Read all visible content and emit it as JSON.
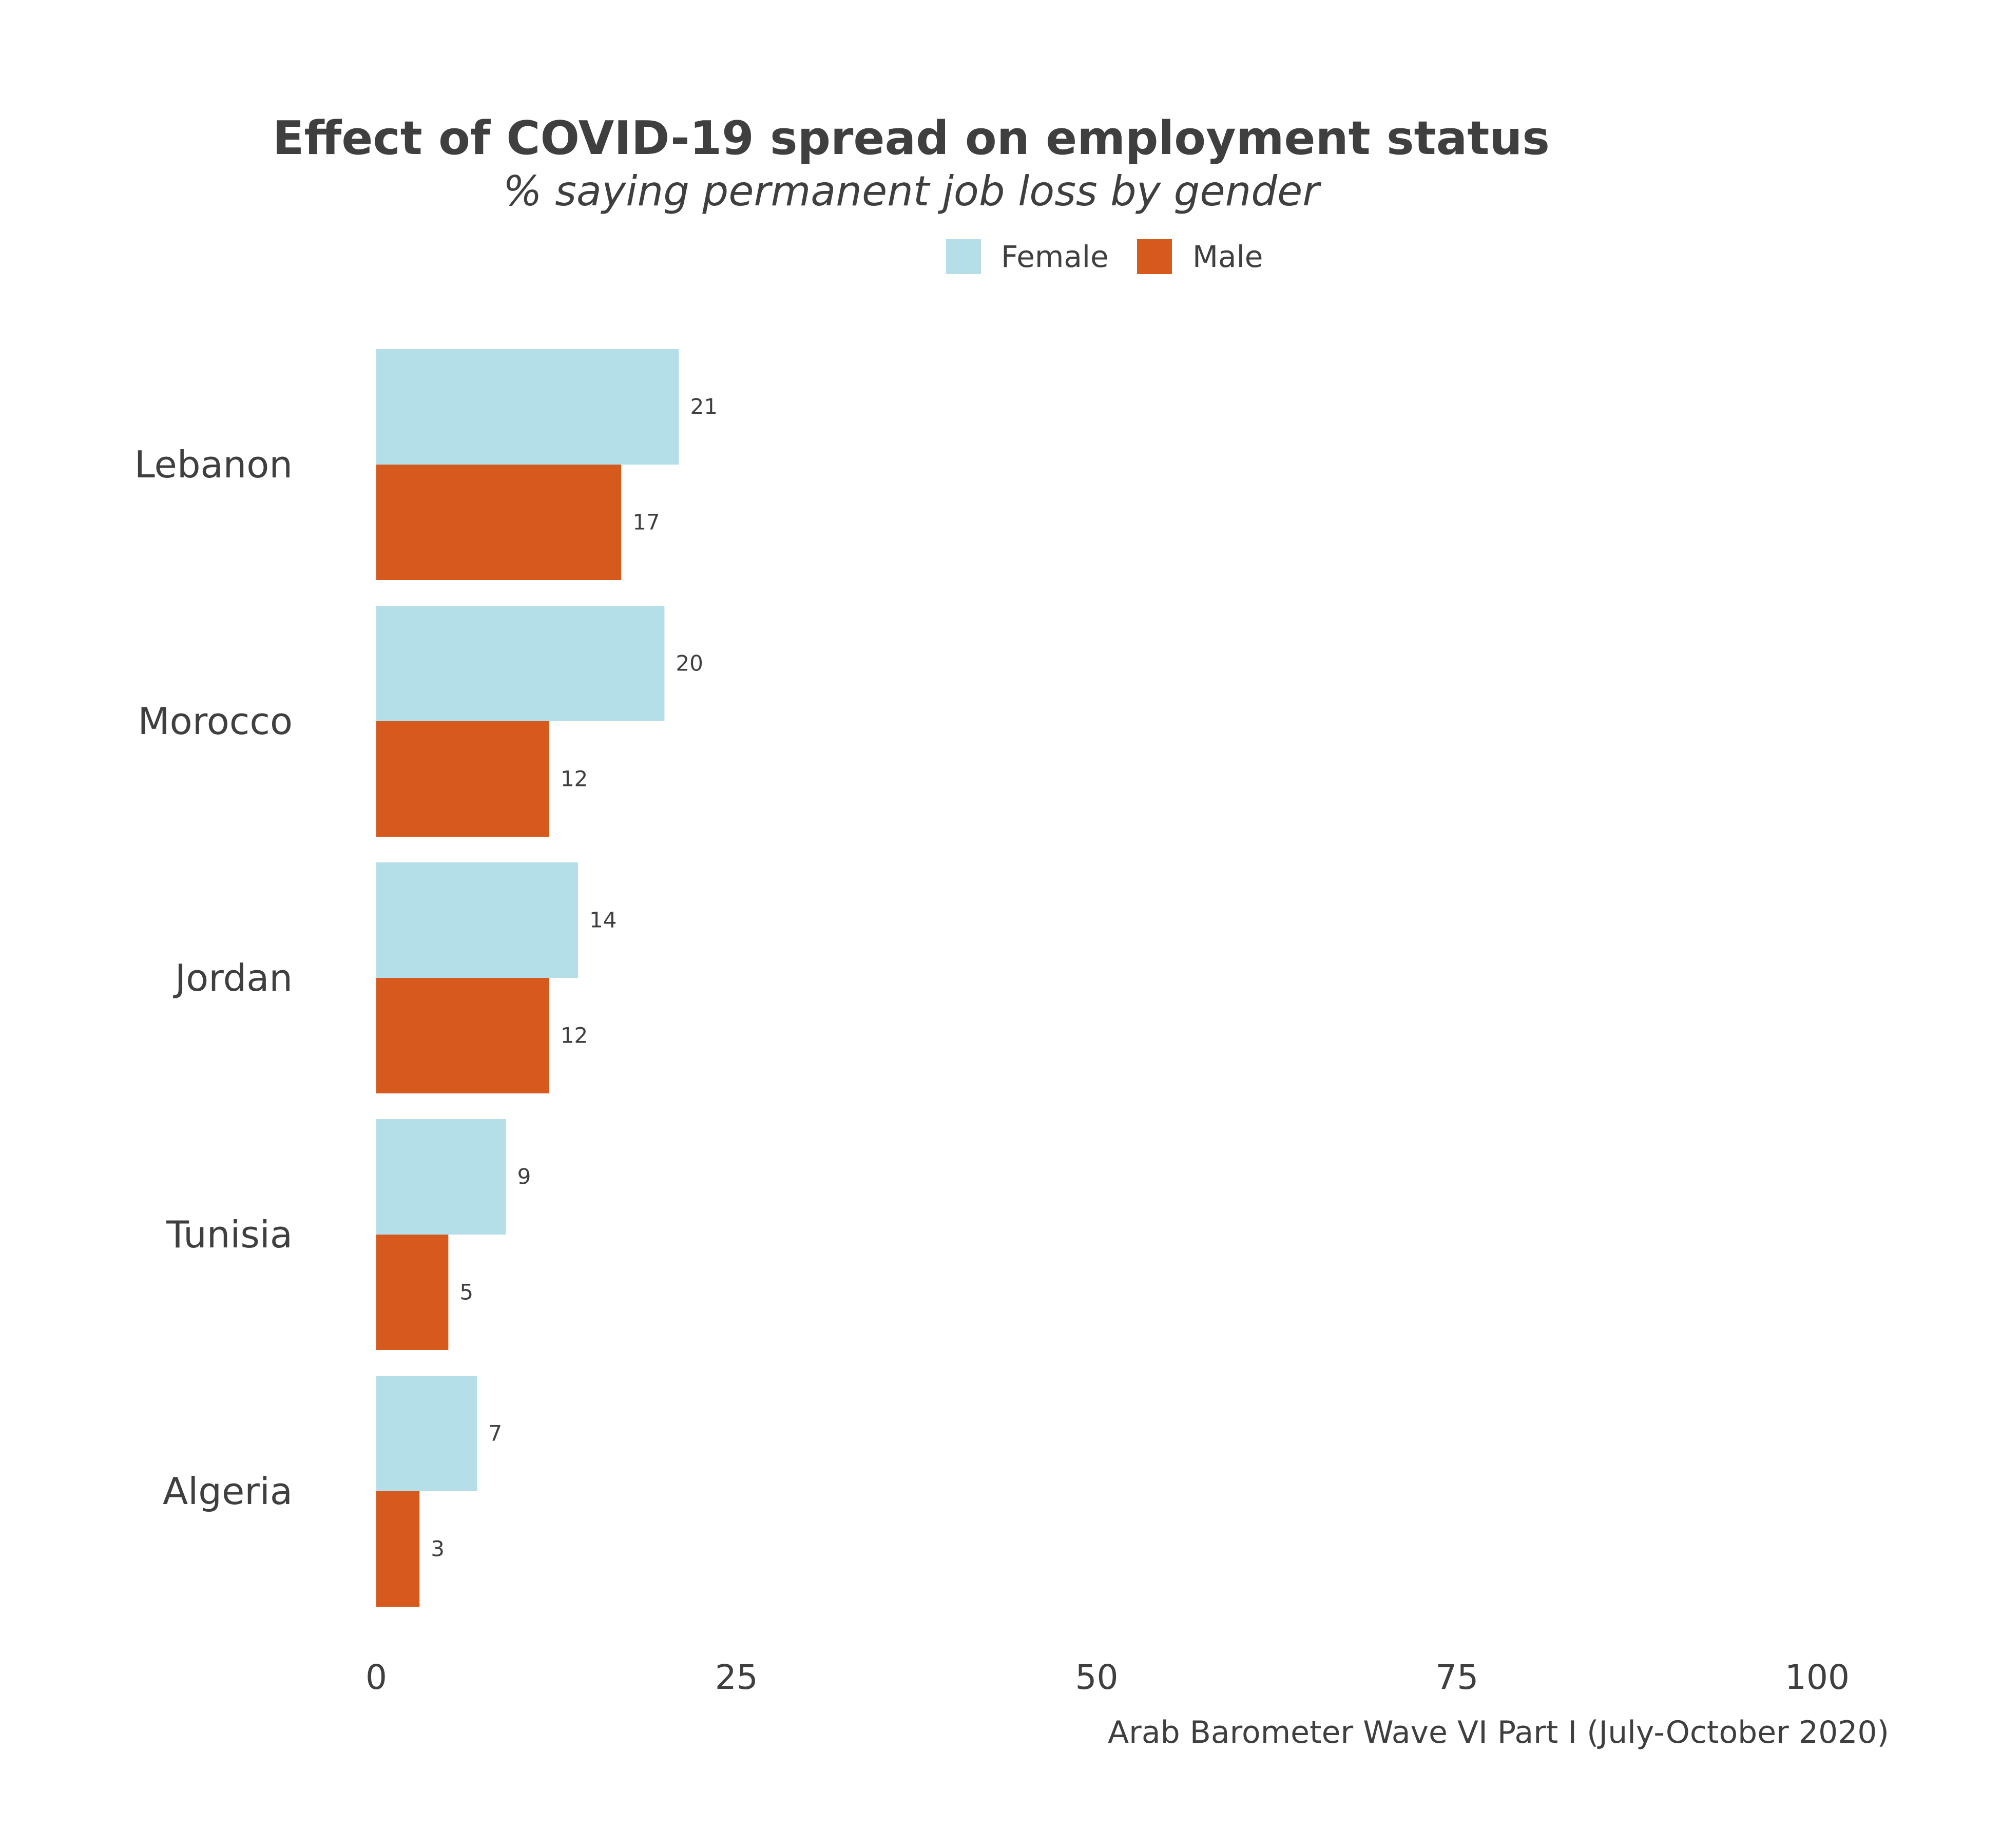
{
  "chart_data": {
    "type": "bar",
    "orientation": "horizontal",
    "title": "Effect of COVID-19 spread on employment status",
    "subtitle": "% saying permanent job loss by gender",
    "caption": "Arab Barometer Wave VI Part I (July-October 2020)",
    "categories": [
      "Lebanon",
      "Morocco",
      "Jordan",
      "Tunisia",
      "Algeria"
    ],
    "series": [
      {
        "name": "Female",
        "color": "#b4dfe8",
        "values": [
          21,
          20,
          14,
          9,
          7
        ]
      },
      {
        "name": "Male",
        "color": "#d6591d",
        "values": [
          17,
          12,
          12,
          5,
          3
        ]
      }
    ],
    "xlim": [
      0,
      100
    ],
    "xticks": [
      0,
      25,
      50,
      75,
      100
    ],
    "xlabel": "",
    "ylabel": "",
    "grid": false,
    "legend": "top-center"
  }
}
